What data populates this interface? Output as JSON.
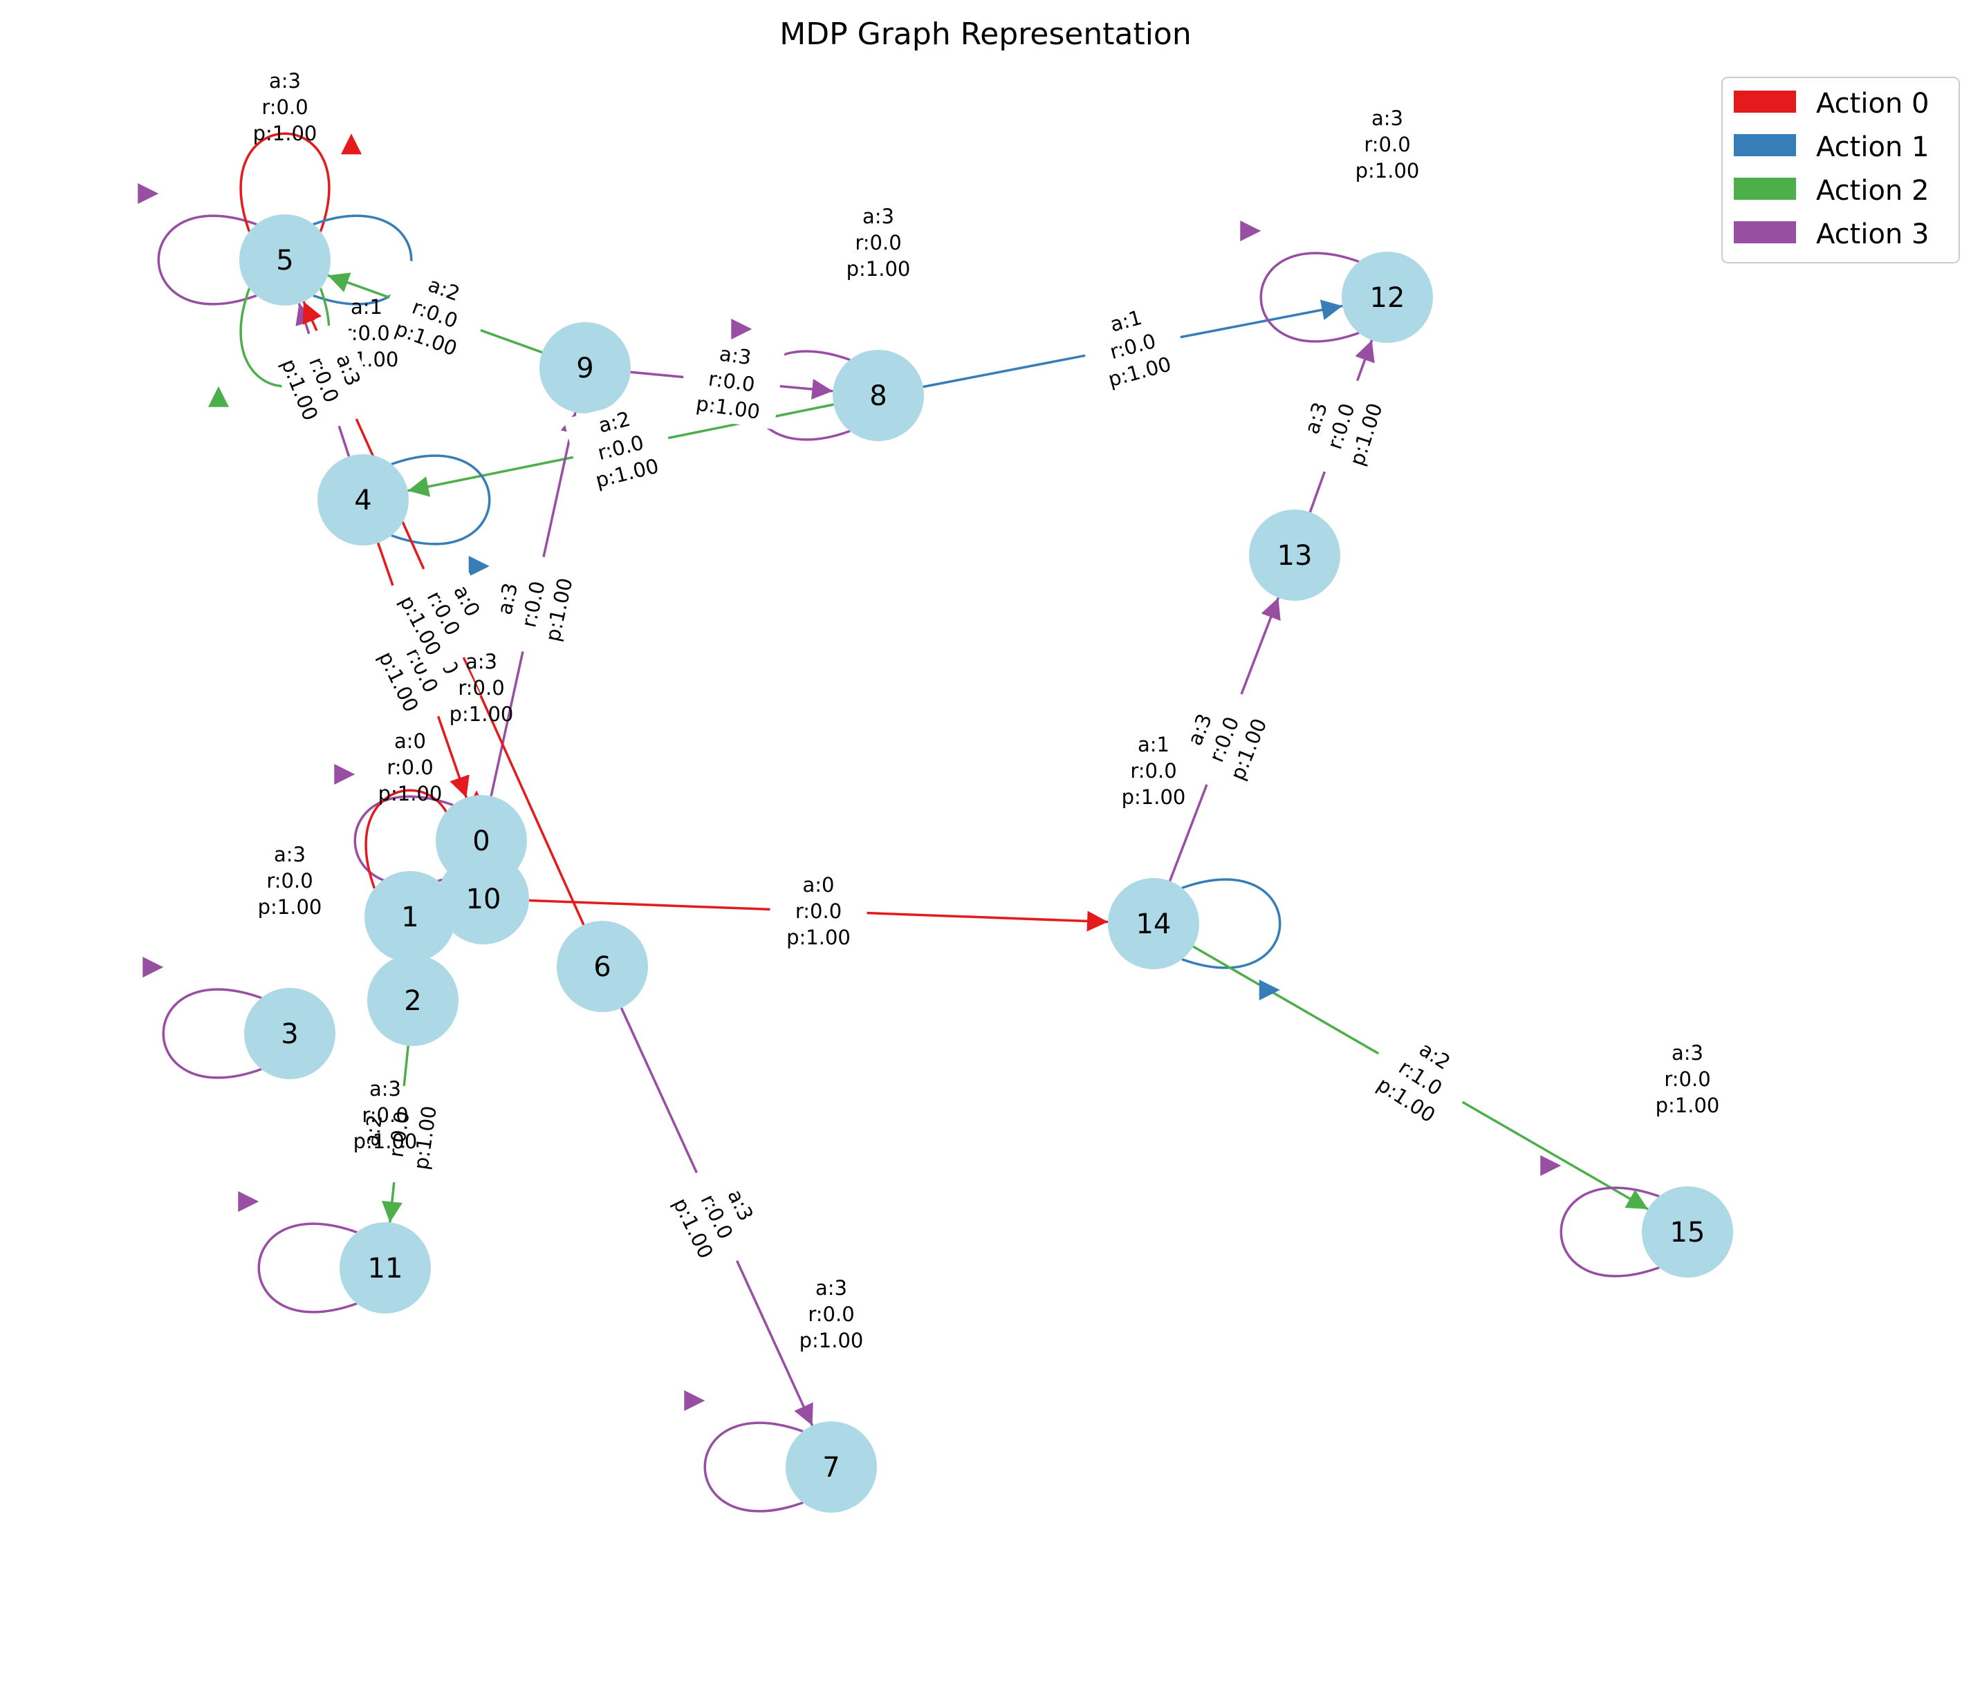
{
  "title": "MDP Graph Representation",
  "actions": [
    {
      "id": 0,
      "label": "Action 0",
      "color": "#e41a1c"
    },
    {
      "id": 1,
      "label": "Action 1",
      "color": "#377eb8"
    },
    {
      "id": 2,
      "label": "Action 2",
      "color": "#4daf4a"
    },
    {
      "id": 3,
      "label": "Action 3",
      "color": "#984ea3"
    }
  ],
  "node_color": "#add8e6",
  "states": [
    "0",
    "1",
    "2",
    "3",
    "4",
    "5",
    "6",
    "7",
    "8",
    "9",
    "10",
    "11",
    "12",
    "13",
    "14",
    "15"
  ],
  "transitions": [
    {
      "from": "5",
      "to": "5",
      "action": 3,
      "reward": "0.0",
      "prob": "1.00"
    },
    {
      "from": "5",
      "to": "5",
      "action": 0,
      "reward": "0.0",
      "prob": "1.00"
    },
    {
      "from": "5",
      "to": "5",
      "action": 1,
      "reward": "0.0",
      "prob": "1.00"
    },
    {
      "from": "5",
      "to": "5",
      "action": 2,
      "reward": "0.0",
      "prob": "1.00"
    },
    {
      "from": "9",
      "to": "5",
      "action": 2,
      "reward": "0.0",
      "prob": "1.00"
    },
    {
      "from": "9",
      "to": "8",
      "action": 3,
      "reward": "0.0",
      "prob": "1.00"
    },
    {
      "from": "8",
      "to": "8",
      "action": 3,
      "reward": "0.0",
      "prob": "1.00"
    },
    {
      "from": "8",
      "to": "12",
      "action": 1,
      "reward": "0.0",
      "prob": "1.00"
    },
    {
      "from": "8",
      "to": "4",
      "action": 2,
      "reward": "0.0",
      "prob": "1.00"
    },
    {
      "from": "12",
      "to": "12",
      "action": 3,
      "reward": "0.0",
      "prob": "1.00"
    },
    {
      "from": "4",
      "to": "4",
      "action": 1,
      "reward": "0.0",
      "prob": "1.00"
    },
    {
      "from": "4",
      "to": "5",
      "action": 3,
      "reward": "0.0",
      "prob": "1.00"
    },
    {
      "from": "4",
      "to": "0",
      "action": 0,
      "reward": "0.0",
      "prob": "1.00"
    },
    {
      "from": "0",
      "to": "0",
      "action": 3,
      "reward": "0.0",
      "prob": "1.00"
    },
    {
      "from": "0",
      "to": "9",
      "action": 3,
      "reward": "0.0",
      "prob": "1.00"
    },
    {
      "from": "6",
      "to": "5",
      "action": 0,
      "reward": "0.0",
      "prob": "1.00"
    },
    {
      "from": "1",
      "to": "1",
      "action": 0,
      "reward": "0.0",
      "prob": "1.00"
    },
    {
      "from": "10",
      "to": "14",
      "action": 0,
      "reward": "0.0",
      "prob": "1.00"
    },
    {
      "from": "3",
      "to": "3",
      "action": 3,
      "reward": "0.0",
      "prob": "1.00"
    },
    {
      "from": "2",
      "to": "11",
      "action": 2,
      "reward": "0.0",
      "prob": "1.00"
    },
    {
      "from": "11",
      "to": "11",
      "action": 3,
      "reward": "0.0",
      "prob": "1.00"
    },
    {
      "from": "6",
      "to": "7",
      "action": 3,
      "reward": "0.0",
      "prob": "1.00"
    },
    {
      "from": "7",
      "to": "7",
      "action": 3,
      "reward": "0.0",
      "prob": "1.00"
    },
    {
      "from": "13",
      "to": "12",
      "action": 3,
      "reward": "0.0",
      "prob": "1.00"
    },
    {
      "from": "14",
      "to": "13",
      "action": 3,
      "reward": "0.0",
      "prob": "1.00"
    },
    {
      "from": "14",
      "to": "14",
      "action": 1,
      "reward": "0.0",
      "prob": "1.00"
    },
    {
      "from": "14",
      "to": "15",
      "action": 2,
      "reward": "1.0",
      "prob": "1.00"
    },
    {
      "from": "15",
      "to": "15",
      "action": 3,
      "reward": "0.0",
      "prob": "1.00"
    }
  ]
}
